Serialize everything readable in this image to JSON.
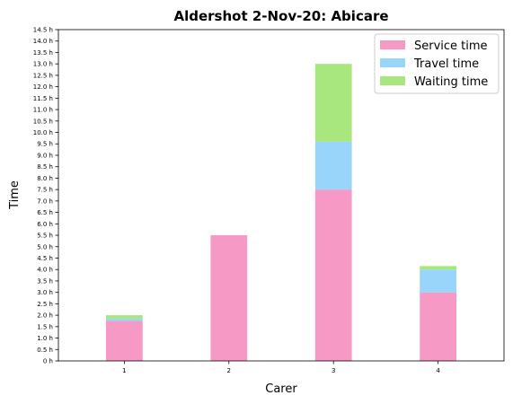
{
  "chart_data": {
    "type": "bar",
    "stacked": true,
    "title": "Aldershot 2-Nov-20: Abicare",
    "xlabel": "Carer",
    "ylabel": "Time",
    "categories": [
      "1",
      "2",
      "3",
      "4"
    ],
    "series": [
      {
        "name": "Service time",
        "color": "#f799c5",
        "values": [
          1.75,
          5.5,
          7.5,
          3.0
        ]
      },
      {
        "name": "Travel time",
        "color": "#99d5fa",
        "values": [
          0.1,
          0.0,
          2.1,
          1.0
        ]
      },
      {
        "name": "Waiting time",
        "color": "#a8e67e",
        "values": [
          0.15,
          0.0,
          3.4,
          0.15
        ]
      }
    ],
    "ylim": [
      0,
      14.5
    ],
    "ytick_labels": [
      "0 h",
      "0.5 h",
      "1.0 h",
      "1.5 h",
      "2.0 h",
      "2.5 h",
      "3.0 h",
      "3.5 h",
      "4.0 h",
      "4.5 h",
      "5.0 h",
      "5.5 h",
      "6.0 h",
      "6.5 h",
      "7.0 h",
      "7.5 h",
      "8.0 h",
      "8.5 h",
      "9.0 h",
      "9.5 h",
      "10.0 h",
      "10.5 h",
      "11.0 h",
      "11.5 h",
      "12.0 h",
      "12.5 h",
      "13.0 h",
      "13.5 h",
      "14.0 h",
      "14.5 h"
    ],
    "grid": false,
    "legend_position": "top-right"
  }
}
